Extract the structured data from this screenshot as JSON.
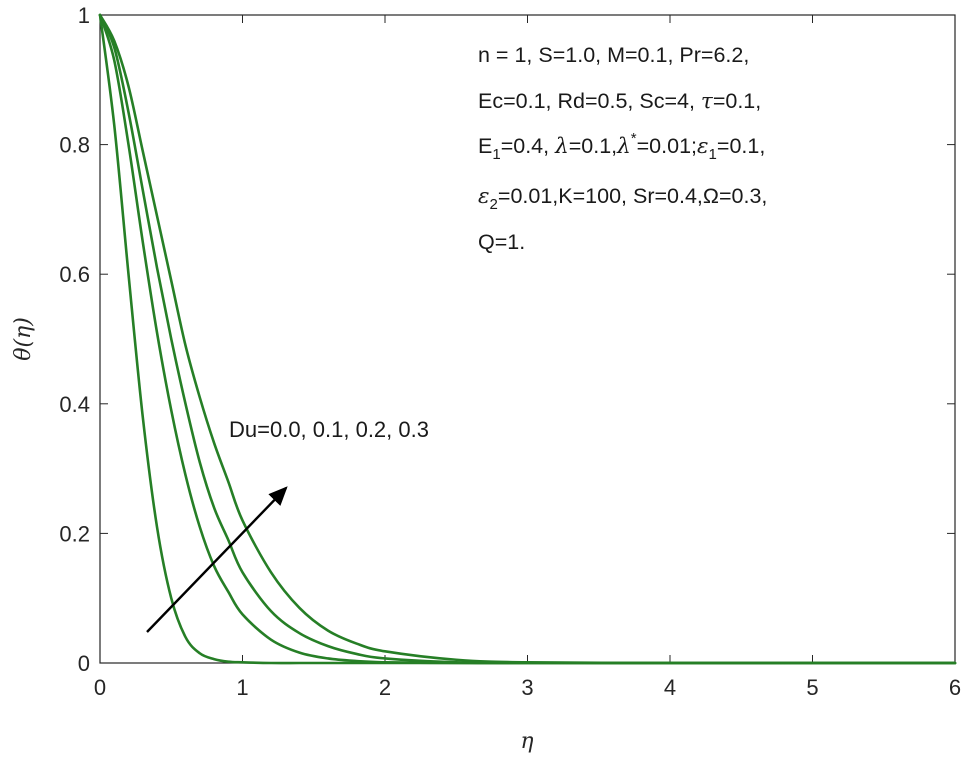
{
  "chart_data": {
    "type": "line",
    "title": "",
    "xlabel": "η",
    "ylabel": "θ(η)",
    "xlim": [
      0,
      6
    ],
    "ylim": [
      0,
      1
    ],
    "grid": false,
    "line_color": "#267F26",
    "x_ticks": [
      "0",
      "1",
      "2",
      "3",
      "4",
      "5",
      "6"
    ],
    "y_ticks": [
      "0",
      "0.2",
      "0.4",
      "0.6",
      "0.8",
      "1"
    ],
    "x": [
      0,
      0.1,
      0.2,
      0.3,
      0.4,
      0.5,
      0.6,
      0.7,
      0.8,
      0.9,
      1.0,
      1.2,
      1.4,
      1.6,
      1.8,
      2.0,
      2.5,
      3.0,
      4.0,
      5.0,
      6.0
    ],
    "series": [
      {
        "values": [
          1.0,
          0.83,
          0.6,
          0.38,
          0.21,
          0.1,
          0.04,
          0.015,
          0.006,
          0.002,
          0.001,
          0,
          0,
          0,
          0,
          0,
          0,
          0,
          0,
          0,
          0
        ]
      },
      {
        "values": [
          1.0,
          0.93,
          0.8,
          0.65,
          0.51,
          0.39,
          0.29,
          0.21,
          0.15,
          0.11,
          0.075,
          0.036,
          0.016,
          0.007,
          0.003,
          0.001,
          0,
          0,
          0,
          0,
          0
        ]
      },
      {
        "values": [
          1.0,
          0.95,
          0.85,
          0.73,
          0.61,
          0.5,
          0.4,
          0.31,
          0.24,
          0.19,
          0.14,
          0.08,
          0.046,
          0.026,
          0.014,
          0.007,
          0.001,
          0,
          0,
          0,
          0
        ]
      },
      {
        "values": [
          1.0,
          0.96,
          0.89,
          0.79,
          0.69,
          0.59,
          0.49,
          0.41,
          0.34,
          0.28,
          0.22,
          0.14,
          0.085,
          0.05,
          0.03,
          0.018,
          0.005,
          0.001,
          0,
          0,
          0
        ]
      }
    ],
    "annotation": "Du=0.0, 0.1, 0.2, 0.3",
    "params": [
      [
        "n = 1, S=1.0,  M=0.1, Pr=6.2,"
      ],
      [
        "Ec=0.1, Rd=0.5, Sc=4,  ",
        "τ",
        "=0.1,"
      ],
      [
        "E",
        "1",
        "=0.4,  ",
        "λ",
        "=0.1,",
        "λ",
        "*",
        "=0.01;",
        "ε",
        "1",
        "=0.1,"
      ],
      [
        "ε",
        "2",
        "=0.01,K=100, Sr=0.4,",
        "Ω",
        "=0.3,"
      ],
      [
        "Q=1."
      ]
    ]
  }
}
